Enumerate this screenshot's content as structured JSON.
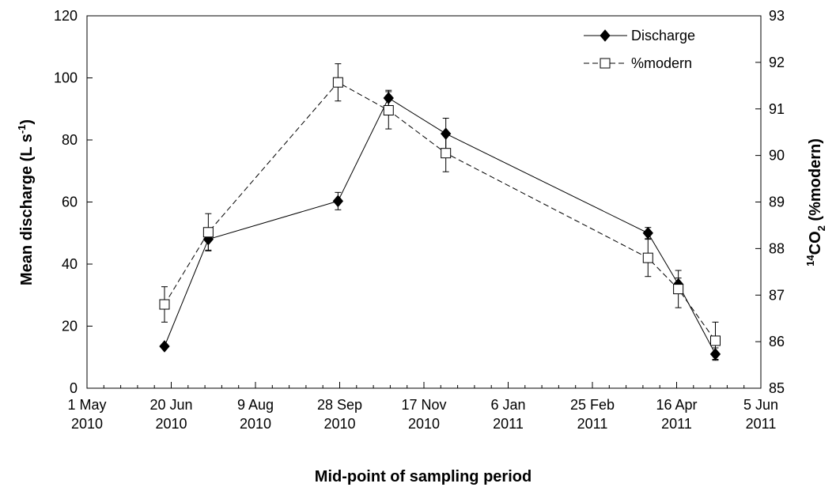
{
  "chart_data": {
    "type": "line",
    "xlabel": "Mid-point of sampling period",
    "ylabel_left": {
      "main": "Mean discharge (L s",
      "sup": "-1",
      "end": ")"
    },
    "ylabel_right": {
      "sup": "14",
      "pre": "CO",
      "sub": "2",
      "post": " (%modern)"
    },
    "x_ticks": [
      {
        "date": "2010-05-01",
        "line1": "1 May",
        "line2": "2010"
      },
      {
        "date": "2010-06-20",
        "line1": "20 Jun",
        "line2": "2010"
      },
      {
        "date": "2010-08-09",
        "line1": "9 Aug",
        "line2": "2010"
      },
      {
        "date": "2010-09-28",
        "line1": "28 Sep",
        "line2": "2010"
      },
      {
        "date": "2010-11-17",
        "line1": "17 Nov",
        "line2": "2010"
      },
      {
        "date": "2011-01-06",
        "line1": "6 Jan",
        "line2": "2011"
      },
      {
        "date": "2011-02-25",
        "line1": "25 Feb",
        "line2": "2011"
      },
      {
        "date": "2011-04-16",
        "line1": "16 Apr",
        "line2": "2011"
      },
      {
        "date": "2011-06-05",
        "line1": "5 Jun",
        "line2": "2011"
      }
    ],
    "xlim": [
      "2010-05-01",
      "2011-06-05"
    ],
    "y_left_lim": [
      0,
      120
    ],
    "y_left_ticks": [
      0,
      20,
      40,
      60,
      80,
      100,
      120
    ],
    "y_right_lim": [
      85,
      93
    ],
    "y_right_ticks": [
      85,
      86,
      87,
      88,
      89,
      90,
      91,
      92,
      93
    ],
    "grid": false,
    "legend_position": "top-right",
    "series": [
      {
        "name": "Discharge",
        "axis": "left",
        "marker": "diamond",
        "line": "solid",
        "points": [
          {
            "x": "2010-06-16",
            "y": 13.5,
            "err": 0
          },
          {
            "x": "2010-07-12",
            "y": 48,
            "err": 3.5
          },
          {
            "x": "2010-09-27",
            "y": 60.3,
            "err": 2.8
          },
          {
            "x": "2010-10-27",
            "y": 93.5,
            "err": 2.5
          },
          {
            "x": "2010-11-30",
            "y": 82,
            "err": 5
          },
          {
            "x": "2011-03-30",
            "y": 50,
            "err": 1.8
          },
          {
            "x": "2011-04-17",
            "y": 33.5,
            "err": 2
          },
          {
            "x": "2011-05-09",
            "y": 11,
            "err": 2
          }
        ]
      },
      {
        "name": "%modern",
        "axis": "right",
        "marker": "square",
        "line": "dashed",
        "points": [
          {
            "x": "2010-06-16",
            "y": 86.8,
            "err": 0.38
          },
          {
            "x": "2010-07-12",
            "y": 88.35,
            "err": 0.4
          },
          {
            "x": "2010-09-27",
            "y": 91.57,
            "err": 0.4
          },
          {
            "x": "2010-10-27",
            "y": 90.97,
            "err": 0.4
          },
          {
            "x": "2010-11-30",
            "y": 90.05,
            "err": 0.4
          },
          {
            "x": "2011-03-30",
            "y": 87.8,
            "err": 0.4
          },
          {
            "x": "2011-04-17",
            "y": 87.13,
            "err": 0.4
          },
          {
            "x": "2011-05-09",
            "y": 86.02,
            "err": 0.4
          }
        ]
      }
    ]
  }
}
